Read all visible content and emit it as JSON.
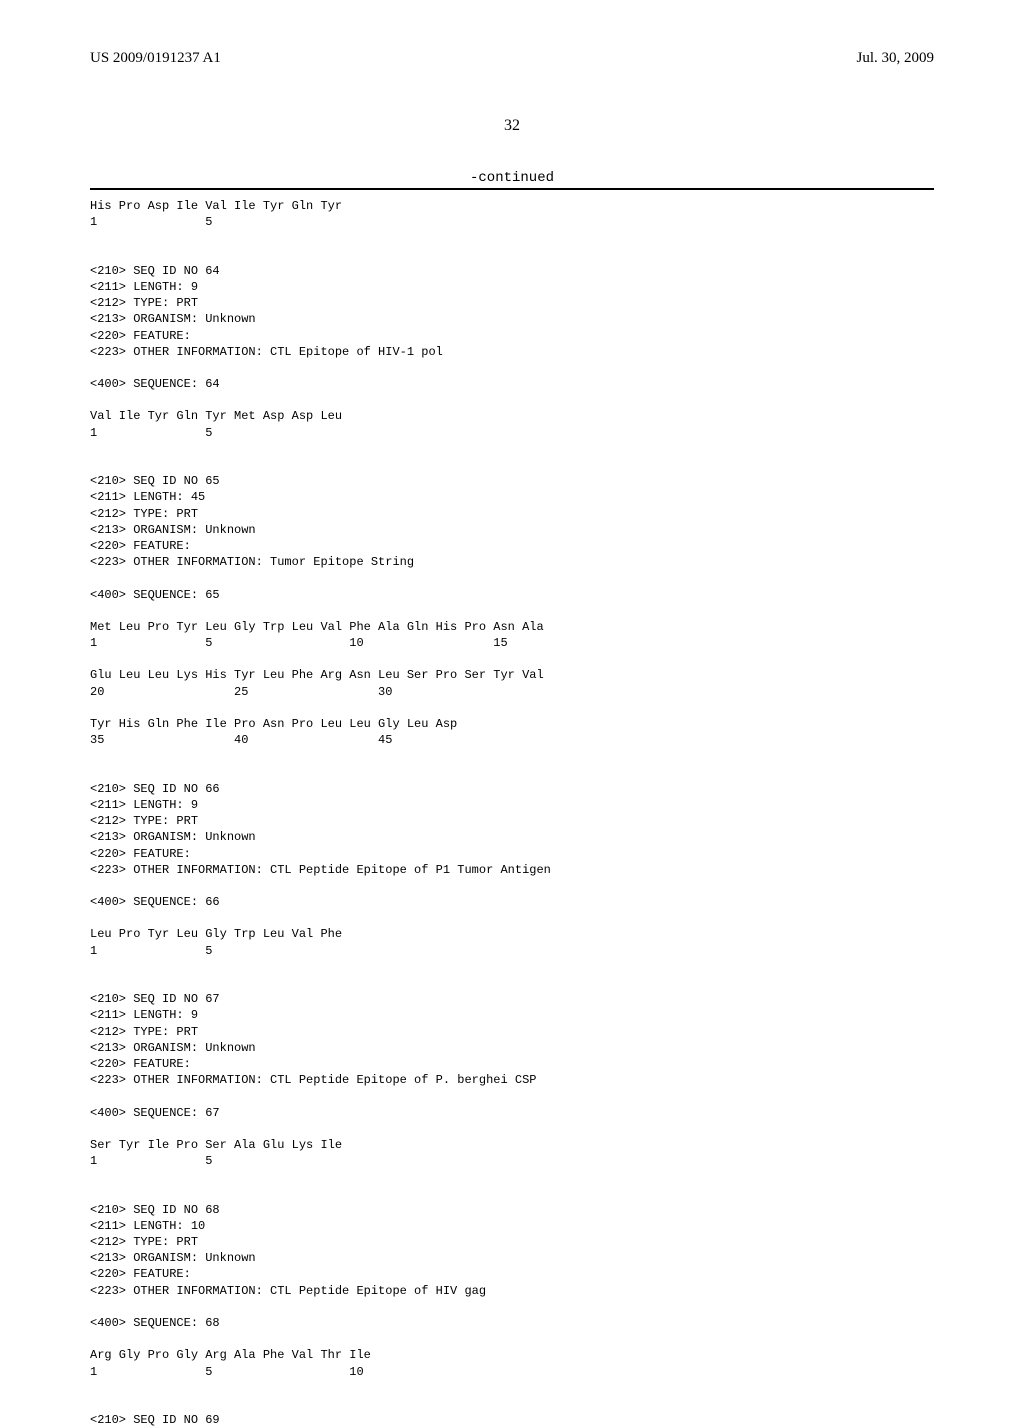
{
  "header": {
    "pub_number": "US 2009/0191237 A1",
    "pub_date": "Jul. 30, 2009"
  },
  "page_number": "32",
  "continued_label": "-continued",
  "sequences": [
    {
      "aa_line": "His Pro Asp Ile Val Ile Tyr Gln Tyr",
      "num_line": "1               5"
    },
    {
      "meta": [
        "<210> SEQ ID NO 64",
        "<211> LENGTH: 9",
        "<212> TYPE: PRT",
        "<213> ORGANISM: Unknown",
        "<220> FEATURE:",
        "<223> OTHER INFORMATION: CTL Epitope of HIV-1 pol"
      ],
      "seq_header": "<400> SEQUENCE: 64",
      "aa_line": "Val Ile Tyr Gln Tyr Met Asp Asp Leu",
      "num_line": "1               5"
    },
    {
      "meta": [
        "<210> SEQ ID NO 65",
        "<211> LENGTH: 45",
        "<212> TYPE: PRT",
        "<213> ORGANISM: Unknown",
        "<220> FEATURE:",
        "<223> OTHER INFORMATION: Tumor Epitope String"
      ],
      "seq_header": "<400> SEQUENCE: 65",
      "aa_lines": [
        "Met Leu Pro Tyr Leu Gly Trp Leu Val Phe Ala Gln His Pro Asn Ala",
        "1               5                   10                  15",
        "",
        "Glu Leu Leu Lys His Tyr Leu Phe Arg Asn Leu Ser Pro Ser Tyr Val",
        "20                  25                  30",
        "",
        "Tyr His Gln Phe Ile Pro Asn Pro Leu Leu Gly Leu Asp",
        "35                  40                  45"
      ]
    },
    {
      "meta": [
        "<210> SEQ ID NO 66",
        "<211> LENGTH: 9",
        "<212> TYPE: PRT",
        "<213> ORGANISM: Unknown",
        "<220> FEATURE:",
        "<223> OTHER INFORMATION: CTL Peptide Epitope of P1 Tumor Antigen"
      ],
      "seq_header": "<400> SEQUENCE: 66",
      "aa_line": "Leu Pro Tyr Leu Gly Trp Leu Val Phe",
      "num_line": "1               5"
    },
    {
      "meta": [
        "<210> SEQ ID NO 67",
        "<211> LENGTH: 9",
        "<212> TYPE: PRT",
        "<213> ORGANISM: Unknown",
        "<220> FEATURE:",
        "<223> OTHER INFORMATION: CTL Peptide Epitope of P. berghei CSP"
      ],
      "seq_header": "<400> SEQUENCE: 67",
      "aa_line": "Ser Tyr Ile Pro Ser Ala Glu Lys Ile",
      "num_line": "1               5"
    },
    {
      "meta": [
        "<210> SEQ ID NO 68",
        "<211> LENGTH: 10",
        "<212> TYPE: PRT",
        "<213> ORGANISM: Unknown",
        "<220> FEATURE:",
        "<223> OTHER INFORMATION: CTL Peptide Epitope of HIV gag"
      ],
      "seq_header": "<400> SEQUENCE: 68",
      "aa_line": "Arg Gly Pro Gly Arg Ala Phe Val Thr Ile",
      "num_line": "1               5                   10"
    },
    {
      "meta": [
        "<210> SEQ ID NO 69"
      ]
    }
  ]
}
